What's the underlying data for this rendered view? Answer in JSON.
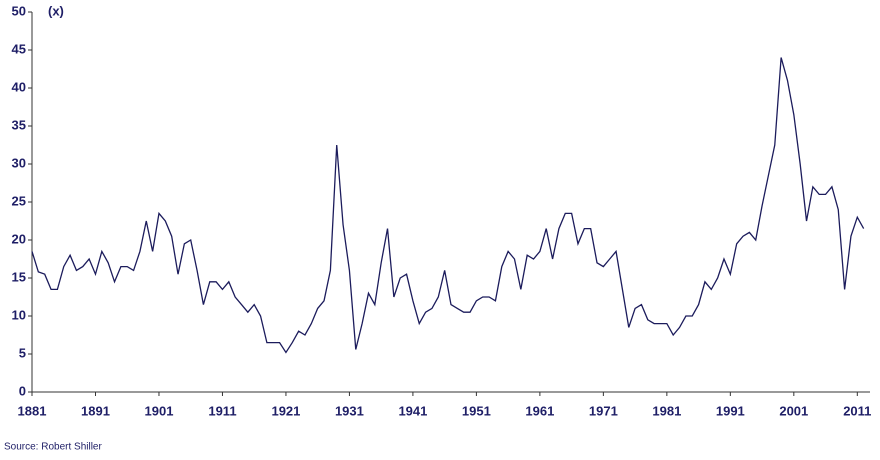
{
  "chart_data": {
    "type": "line",
    "axis_unit_label": "(x)",
    "source": "Source: Robert Shiller",
    "x": [
      1881,
      1882,
      1883,
      1884,
      1885,
      1886,
      1887,
      1888,
      1889,
      1890,
      1891,
      1892,
      1893,
      1894,
      1895,
      1896,
      1897,
      1898,
      1899,
      1900,
      1901,
      1902,
      1903,
      1904,
      1905,
      1906,
      1907,
      1908,
      1909,
      1910,
      1911,
      1912,
      1913,
      1914,
      1915,
      1916,
      1917,
      1918,
      1919,
      1920,
      1921,
      1922,
      1923,
      1924,
      1925,
      1926,
      1927,
      1928,
      1929,
      1930,
      1931,
      1932,
      1933,
      1934,
      1935,
      1936,
      1937,
      1938,
      1939,
      1940,
      1941,
      1942,
      1943,
      1944,
      1945,
      1946,
      1947,
      1948,
      1949,
      1950,
      1951,
      1952,
      1953,
      1954,
      1955,
      1956,
      1957,
      1958,
      1959,
      1960,
      1961,
      1962,
      1963,
      1964,
      1965,
      1966,
      1967,
      1968,
      1969,
      1970,
      1971,
      1972,
      1973,
      1974,
      1975,
      1976,
      1977,
      1978,
      1979,
      1980,
      1981,
      1982,
      1983,
      1984,
      1985,
      1986,
      1987,
      1988,
      1989,
      1990,
      1991,
      1992,
      1993,
      1994,
      1995,
      1996,
      1997,
      1998,
      1999,
      2000,
      2001,
      2002,
      2003,
      2004,
      2005,
      2006,
      2007,
      2008,
      2009,
      2010,
      2011,
      2012
    ],
    "series": [
      {
        "color": "#1c1c5c",
        "values": [
          18.5,
          15.8,
          15.5,
          13.5,
          13.5,
          16.5,
          18,
          16,
          16.5,
          17.5,
          15.5,
          18.5,
          17,
          14.5,
          16.5,
          16.5,
          16,
          18.5,
          22.5,
          18.5,
          23.5,
          22.5,
          20.5,
          15.5,
          19.5,
          20,
          16,
          11.5,
          14.5,
          14.5,
          13.5,
          14.5,
          12.5,
          11.5,
          10.5,
          11.5,
          10,
          6.5,
          6.5,
          6.5,
          5.2,
          6.5,
          8,
          7.5,
          9,
          11,
          12,
          16,
          32.5,
          22,
          16,
          5.6,
          9,
          13,
          11.5,
          17,
          21.5,
          12.5,
          15,
          15.5,
          12,
          9,
          10.5,
          11,
          12.5,
          16,
          11.5,
          11,
          10.5,
          10.5,
          12,
          12.5,
          12.5,
          12,
          16.5,
          18.5,
          17.5,
          13.5,
          18,
          17.5,
          18.5,
          21.5,
          17.5,
          21.5,
          23.5,
          23.5,
          19.5,
          21.5,
          21.5,
          17,
          16.5,
          17.5,
          18.5,
          13.5,
          8.5,
          11,
          11.5,
          9.5,
          9,
          9,
          9,
          7.5,
          8.5,
          10,
          10,
          11.5,
          14.5,
          13.5,
          15,
          17.5,
          15.5,
          19.5,
          20.5,
          21,
          20,
          24.5,
          28.5,
          32.5,
          44,
          41,
          36.5,
          30,
          22.5,
          27,
          26,
          26,
          27,
          24,
          13.5,
          20.5,
          23,
          21.5
        ]
      }
    ],
    "xlim": [
      1881,
      2013
    ],
    "xticks": [
      1881,
      1891,
      1901,
      1911,
      1921,
      1931,
      1941,
      1951,
      1961,
      1971,
      1981,
      1991,
      2001,
      2011
    ],
    "ylim": [
      0,
      50
    ],
    "yticks": [
      0,
      5,
      10,
      15,
      20,
      25,
      30,
      35,
      40,
      45,
      50
    ]
  }
}
